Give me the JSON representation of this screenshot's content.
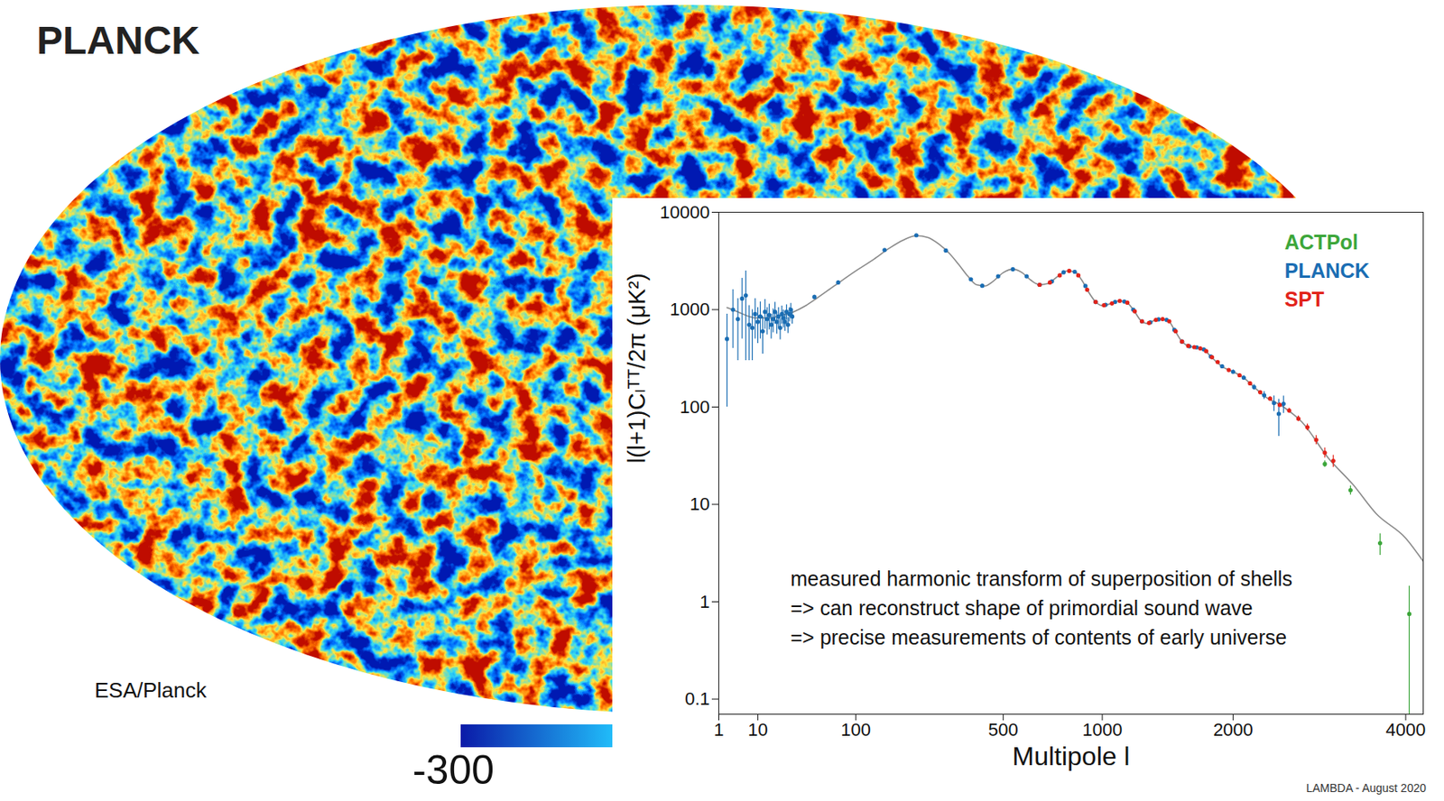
{
  "map": {
    "title": "PLANCK",
    "credit": "ESA/Planck",
    "colorbar": {
      "ticks": [
        -300
      ]
    }
  },
  "chart_data": {
    "type": "line",
    "x_label": "Multipole l",
    "y_label": "l(l+1)Cₗᵀᵀ/2π (μK²)",
    "log": "y",
    "xlim": [
      1,
      4250
    ],
    "xticks": [
      1,
      10,
      100,
      500,
      1000,
      2000,
      4000
    ],
    "ylim": [
      0.07,
      10000
    ],
    "yticks": [
      0.1,
      1,
      10,
      100,
      1000,
      10000
    ],
    "legend": "top-right",
    "annotation": [
      "measured harmonic transform of superposition of shells",
      "=> can reconstruct shape of primordial sound wave",
      "=> precise measurements of contents of early universe"
    ],
    "source": "LAMBDA - August 2020",
    "curve": {
      "color": "#8a8a8a",
      "x": [
        2,
        4,
        7,
        10,
        15,
        20,
        30,
        40,
        50,
        70,
        100,
        130,
        160,
        190,
        220,
        250,
        280,
        310,
        340,
        370,
        400,
        430,
        460,
        500,
        540,
        580,
        620,
        660,
        700,
        750,
        800,
        840,
        880,
        920,
        960,
        1000,
        1050,
        1100,
        1150,
        1200,
        1250,
        1300,
        1350,
        1400,
        1450,
        1500,
        1560,
        1620,
        1680,
        1740,
        1800,
        1900,
        2000,
        2100,
        2200,
        2300,
        2500,
        2700,
        3000,
        3300,
        3600,
        4000,
        4250
      ],
      "values": [
        1050,
        950,
        850,
        820,
        820,
        860,
        950,
        1100,
        1300,
        1750,
        2500,
        3300,
        4300,
        5200,
        5750,
        5500,
        4700,
        3800,
        2900,
        2200,
        1800,
        1750,
        1950,
        2400,
        2600,
        2400,
        2000,
        1800,
        1850,
        2200,
        2500,
        2450,
        2000,
        1500,
        1200,
        1100,
        1150,
        1230,
        1200,
        1000,
        780,
        720,
        780,
        800,
        780,
        620,
        470,
        420,
        410,
        390,
        330,
        260,
        230,
        200,
        160,
        130,
        100,
        70,
        30,
        16,
        8,
        4.5,
        2.6
      ]
    },
    "series": [
      {
        "name": "ACTPol",
        "color": "#3ca63a",
        "type": "scatter",
        "marker": "circle",
        "x": [
          2960,
          3270,
          3650,
          4050
        ],
        "values": [
          26,
          14,
          4,
          0.75
        ],
        "errors": [
          2,
          1.5,
          1,
          0.7
        ]
      },
      {
        "name": "PLANCK",
        "color": "#1a6db3",
        "type": "scatter",
        "marker": "circle",
        "x": [
          2,
          3,
          4,
          5,
          6,
          7,
          8,
          9,
          10,
          11,
          12,
          13,
          14,
          15,
          16,
          17,
          18,
          19,
          20,
          21,
          22,
          23,
          24,
          25,
          26,
          27,
          28,
          29,
          48,
          75,
          150,
          220,
          300,
          380,
          420,
          480,
          540,
          600,
          660,
          720,
          780,
          840,
          900,
          960,
          1020,
          1080,
          1140,
          1200,
          1260,
          1320,
          1380,
          1440,
          1500,
          1560,
          1620,
          1680,
          1740,
          1800,
          1900,
          2000,
          2100,
          2200,
          2300,
          2400,
          2450,
          2500
        ],
        "values": [
          500,
          1000,
          800,
          1300,
          1400,
          700,
          650,
          900,
          750,
          850,
          600,
          950,
          800,
          880,
          700,
          800,
          950,
          750,
          850,
          650,
          900,
          820,
          750,
          950,
          700,
          900,
          1000,
          850,
          1350,
          1900,
          4100,
          5800,
          4050,
          2050,
          1760,
          2200,
          2600,
          2200,
          1800,
          1950,
          2420,
          2450,
          1750,
          1200,
          1120,
          1200,
          1210,
          1000,
          760,
          740,
          795,
          785,
          620,
          470,
          420,
          410,
          390,
          330,
          262,
          230,
          200,
          160,
          132,
          110,
          85,
          108
        ],
        "errors": [
          400,
          600,
          500,
          800,
          1100,
          400,
          350,
          400,
          300,
          350,
          250,
          320,
          250,
          260,
          200,
          220,
          240,
          190,
          200,
          160,
          190,
          170,
          150,
          170,
          130,
          150,
          160,
          140,
          60,
          70,
          80,
          80,
          60,
          40,
          30,
          30,
          30,
          30,
          25,
          25,
          30,
          30,
          25,
          20,
          20,
          20,
          20,
          18,
          15,
          14,
          14,
          14,
          12,
          10,
          10,
          10,
          10,
          10,
          10,
          10,
          10,
          10,
          12,
          20,
          35,
          22
        ]
      },
      {
        "name": "SPT",
        "color": "#e2231a",
        "type": "scatter",
        "marker": "circle",
        "x": [
          660,
          710,
          760,
          810,
          860,
          910,
          960,
          1010,
          1060,
          1110,
          1160,
          1210,
          1260,
          1310,
          1360,
          1410,
          1460,
          1510,
          1560,
          1610,
          1660,
          1710,
          1760,
          1810,
          1860,
          1960,
          2060,
          2160,
          2260,
          2360,
          2460,
          2560,
          2660,
          2760,
          2860,
          2960,
          3060
        ],
        "values": [
          1800,
          1900,
          2250,
          2500,
          2250,
          1600,
          1200,
          1110,
          1160,
          1230,
          1180,
          960,
          760,
          730,
          785,
          800,
          760,
          600,
          470,
          425,
          412,
          400,
          375,
          325,
          290,
          240,
          212,
          175,
          142,
          122,
          105,
          92,
          76,
          62,
          46,
          34,
          28
        ],
        "errors": [
          40,
          40,
          40,
          45,
          40,
          30,
          25,
          22,
          22,
          22,
          22,
          20,
          16,
          15,
          15,
          15,
          15,
          12,
          10,
          9,
          9,
          9,
          8,
          7,
          7,
          6,
          6,
          5,
          5,
          5,
          5,
          5,
          5,
          5,
          5,
          4,
          4
        ]
      }
    ]
  }
}
